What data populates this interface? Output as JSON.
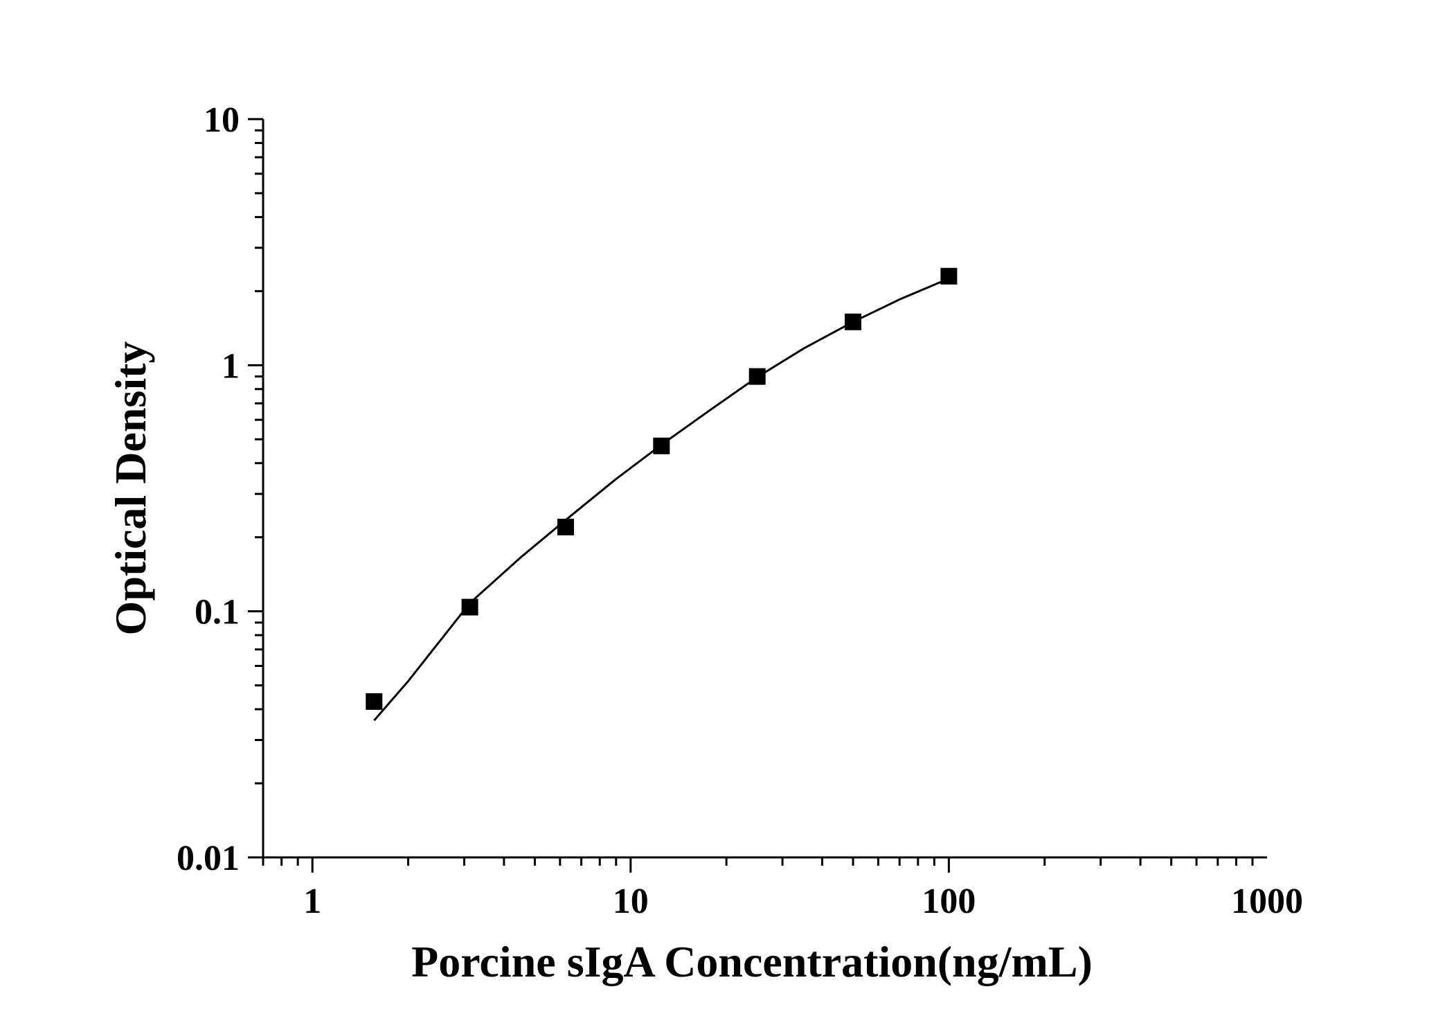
{
  "chart_data": {
    "type": "scatter",
    "title": "",
    "xlabel": "Porcine sIgA Concentration(ng/mL)",
    "ylabel": "Optical Density",
    "x_scale": "log",
    "y_scale": "log",
    "xlim": [
      0.7,
      1000
    ],
    "ylim": [
      0.01,
      10
    ],
    "x_ticks": [
      "1",
      "10",
      "100",
      "1000"
    ],
    "y_ticks": [
      "0.01",
      "0.1",
      "1",
      "10"
    ],
    "grid": false,
    "legend": "none",
    "series": [
      {
        "type": "scatter",
        "marker": "square",
        "color": "#000000",
        "x": [
          1.5625,
          3.125,
          6.25,
          12.5,
          25,
          50,
          100
        ],
        "y": [
          0.043,
          0.104,
          0.22,
          0.47,
          0.9,
          1.5,
          2.3
        ]
      },
      {
        "type": "line",
        "color": "#000000",
        "x": [
          1.5625,
          2.0,
          3.125,
          4.5,
          6.25,
          9.0,
          12.5,
          18.0,
          25,
          35,
          50,
          70,
          100
        ],
        "y": [
          0.036,
          0.052,
          0.108,
          0.165,
          0.235,
          0.345,
          0.475,
          0.665,
          0.895,
          1.17,
          1.5,
          1.85,
          2.25
        ]
      }
    ]
  }
}
